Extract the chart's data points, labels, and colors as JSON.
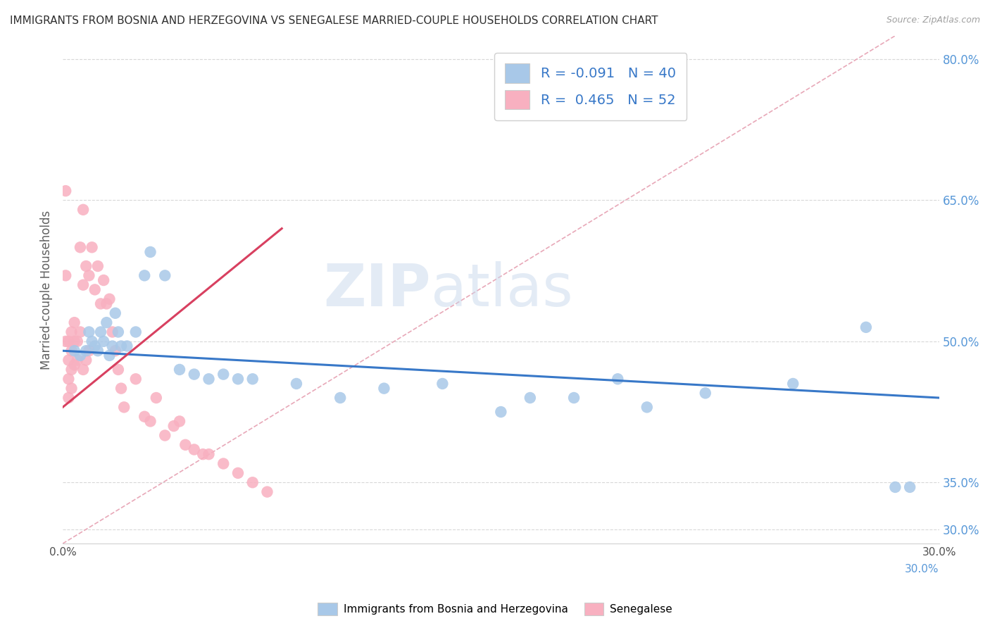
{
  "title": "IMMIGRANTS FROM BOSNIA AND HERZEGOVINA VS SENEGALESE MARRIED-COUPLE HOUSEHOLDS CORRELATION CHART",
  "source": "Source: ZipAtlas.com",
  "ylabel": "Married-couple Households",
  "xlim": [
    0.0,
    0.3
  ],
  "ylim": [
    0.285,
    0.825
  ],
  "xticks": [
    0.0,
    0.05,
    0.1,
    0.15,
    0.2,
    0.25,
    0.3
  ],
  "xticklabels_show": {
    "0.0": "0.0%",
    "0.3": "30.0%"
  },
  "yticks_right": [
    0.3,
    0.35,
    0.5,
    0.65,
    0.8
  ],
  "ytick_labels_right": [
    "30.0%",
    "35.0%",
    "50.0%",
    "65.0%",
    "80.0%"
  ],
  "legend_text_1": "R = -0.091   N = 40",
  "legend_text_2": "R =  0.465   N = 52",
  "legend_label_blue": "Immigrants from Bosnia and Herzegovina",
  "legend_label_pink": "Senegalese",
  "blue_color": "#a8c8e8",
  "pink_color": "#f8b0c0",
  "blue_line_color": "#3878c8",
  "pink_line_color": "#d84060",
  "ref_line_color": "#e8a8b8",
  "title_color": "#303030",
  "right_axis_color": "#5898d8",
  "blue_scatter_x": [
    0.004,
    0.006,
    0.008,
    0.009,
    0.01,
    0.011,
    0.012,
    0.013,
    0.014,
    0.015,
    0.016,
    0.017,
    0.018,
    0.019,
    0.02,
    0.022,
    0.025,
    0.028,
    0.03,
    0.035,
    0.04,
    0.045,
    0.05,
    0.055,
    0.06,
    0.065,
    0.08,
    0.095,
    0.11,
    0.13,
    0.15,
    0.16,
    0.175,
    0.19,
    0.2,
    0.22,
    0.25,
    0.275,
    0.285,
    0.29
  ],
  "blue_scatter_y": [
    0.49,
    0.485,
    0.49,
    0.51,
    0.5,
    0.495,
    0.49,
    0.51,
    0.5,
    0.52,
    0.485,
    0.495,
    0.53,
    0.51,
    0.495,
    0.495,
    0.51,
    0.57,
    0.595,
    0.57,
    0.47,
    0.465,
    0.46,
    0.465,
    0.46,
    0.46,
    0.455,
    0.44,
    0.45,
    0.455,
    0.425,
    0.44,
    0.44,
    0.46,
    0.43,
    0.445,
    0.455,
    0.515,
    0.345,
    0.345
  ],
  "pink_scatter_x": [
    0.001,
    0.001,
    0.001,
    0.002,
    0.002,
    0.002,
    0.002,
    0.003,
    0.003,
    0.003,
    0.003,
    0.004,
    0.004,
    0.004,
    0.005,
    0.005,
    0.006,
    0.006,
    0.007,
    0.007,
    0.007,
    0.008,
    0.008,
    0.009,
    0.009,
    0.01,
    0.011,
    0.012,
    0.013,
    0.014,
    0.015,
    0.016,
    0.017,
    0.018,
    0.019,
    0.02,
    0.021,
    0.025,
    0.028,
    0.03,
    0.032,
    0.035,
    0.038,
    0.04,
    0.042,
    0.045,
    0.048,
    0.05,
    0.055,
    0.06,
    0.065,
    0.07
  ],
  "pink_scatter_y": [
    0.66,
    0.57,
    0.5,
    0.5,
    0.48,
    0.46,
    0.44,
    0.51,
    0.49,
    0.47,
    0.45,
    0.52,
    0.5,
    0.475,
    0.5,
    0.48,
    0.6,
    0.51,
    0.64,
    0.56,
    0.47,
    0.58,
    0.48,
    0.57,
    0.49,
    0.6,
    0.555,
    0.58,
    0.54,
    0.565,
    0.54,
    0.545,
    0.51,
    0.49,
    0.47,
    0.45,
    0.43,
    0.46,
    0.42,
    0.415,
    0.44,
    0.4,
    0.41,
    0.415,
    0.39,
    0.385,
    0.38,
    0.38,
    0.37,
    0.36,
    0.35,
    0.34
  ],
  "blue_trend_x": [
    0.0,
    0.3
  ],
  "blue_trend_y": [
    0.49,
    0.44
  ],
  "pink_trend_x": [
    0.0,
    0.075
  ],
  "pink_trend_y": [
    0.43,
    0.62
  ],
  "ref_line_x": [
    0.0,
    0.285
  ],
  "ref_line_y": [
    0.285,
    0.825
  ]
}
